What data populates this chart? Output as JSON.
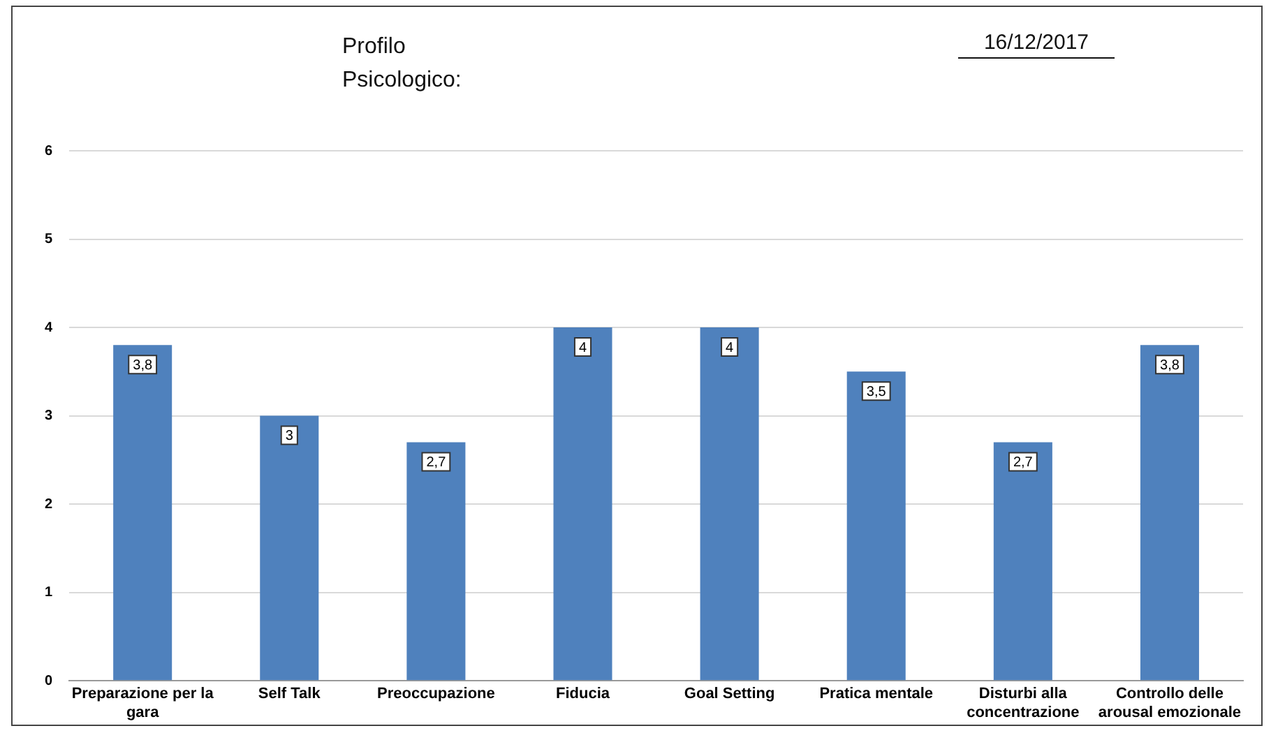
{
  "chart_data": {
    "type": "bar",
    "title": "Profilo Psicologico:",
    "annotations": [
      "16/12/2017"
    ],
    "categories": [
      "Preparazione per la gara",
      "Self Talk",
      "Preoccupazione",
      "Fiducia",
      "Goal Setting",
      "Pratica mentale",
      "Disturbi alla concentrazione",
      "Controllo delle arousal emozionale"
    ],
    "values": [
      3.8,
      3,
      2.7,
      4,
      4,
      3.5,
      2.7,
      3.8
    ],
    "value_labels": [
      "3,8",
      "3",
      "2,7",
      "4",
      "4",
      "3,5",
      "2,7",
      "3,8"
    ],
    "color": "#4f81bd",
    "ylim": [
      0,
      6
    ],
    "yticks": [
      0,
      1,
      2,
      3,
      4,
      5,
      6
    ],
    "grid": "y"
  }
}
